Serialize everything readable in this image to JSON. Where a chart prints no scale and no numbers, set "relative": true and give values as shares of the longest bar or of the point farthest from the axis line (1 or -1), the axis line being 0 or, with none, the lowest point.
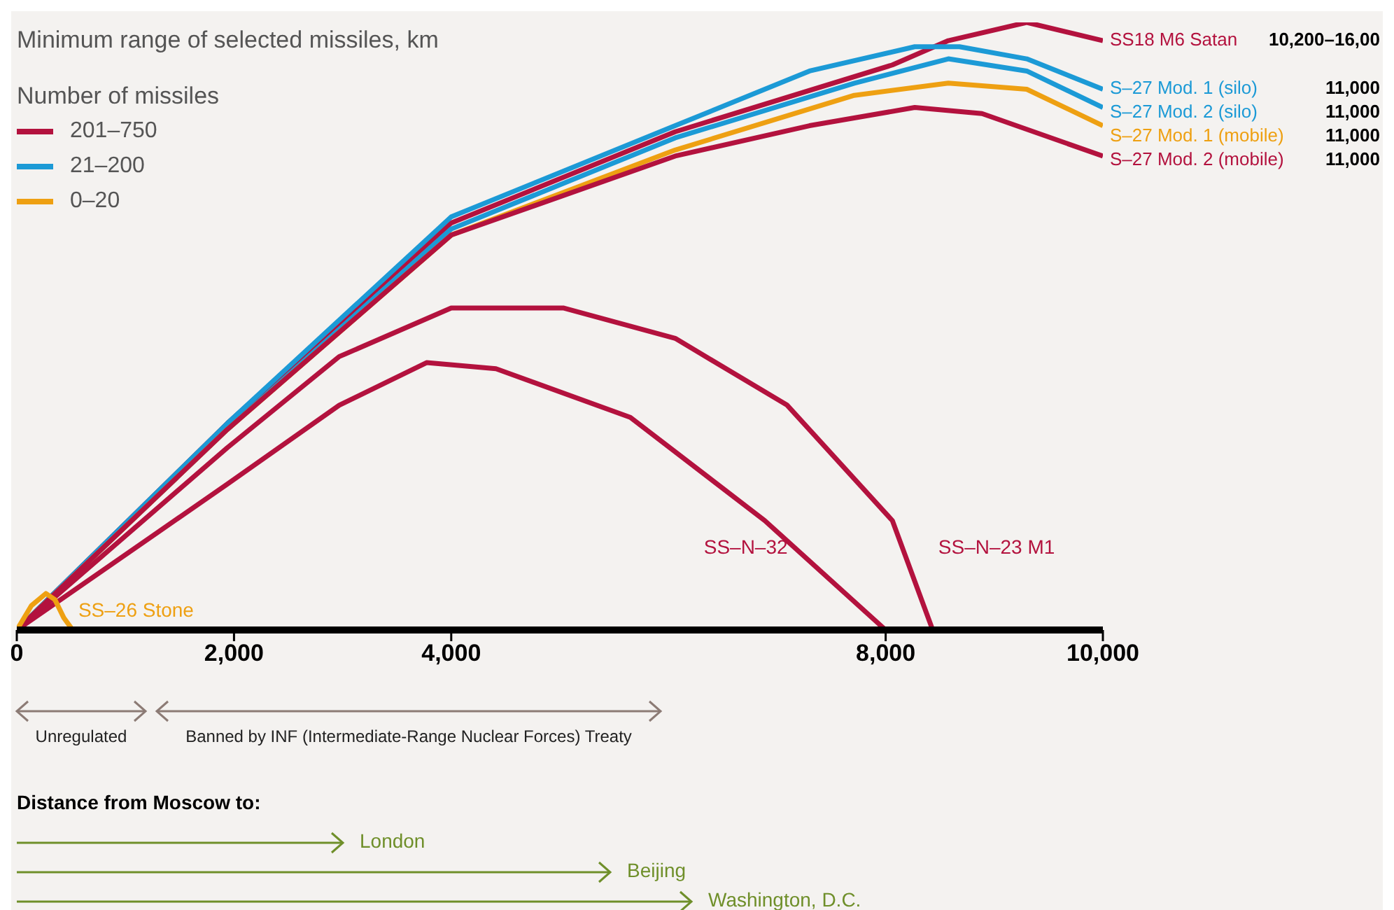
{
  "chart_data": {
    "type": "line",
    "title": "Minimum range of selected missiles, km",
    "legend_title": "Number of missiles",
    "relative": true,
    "marker": "none",
    "line_style": "solid",
    "grid": false,
    "xlim": [
      0,
      10000
    ],
    "xticks": [
      0,
      {
        "value": 2000,
        "label": "2,000"
      },
      {
        "value": 4000,
        "label": "4,000"
      },
      {
        "value": 8000,
        "label": "8,000"
      },
      {
        "value": 10000,
        "label": "10,000"
      }
    ],
    "series": [
      {
        "name": "SS18 M6 Satan",
        "color": "#b3123e",
        "x": [
          0,
          1938,
          4000,
          6062,
          8062,
          8577,
          9299,
          10000
        ],
        "values": [
          0,
          0.34,
          0.67,
          0.82,
          0.93,
          0.97,
          1,
          0.97
        ]
      },
      {
        "name": "S–27 Mod. 1 (silo)",
        "color": "#1c9ad6",
        "x": [
          0,
          1938,
          4000,
          6062,
          7299,
          8268,
          8680,
          9299,
          10000
        ],
        "values": [
          0,
          0.34,
          0.68,
          0.83,
          0.92,
          0.96,
          0.96,
          0.94,
          0.89
        ]
      },
      {
        "name": "S–27 Mod. 2 (silo)",
        "color": "#1c9ad6",
        "x": [
          0,
          1938,
          4000,
          6062,
          7711,
          8577,
          9299,
          10000
        ],
        "values": [
          0,
          0.33,
          0.66,
          0.81,
          0.9,
          0.94,
          0.92,
          0.86
        ]
      },
      {
        "name": "S–27 Mod. 1 (mobile)",
        "color": "#eea012",
        "x": [
          0,
          1938,
          4000,
          6062,
          7711,
          8577,
          9299,
          10000
        ],
        "values": [
          0,
          0.33,
          0.65,
          0.79,
          0.88,
          0.9,
          0.89,
          0.83
        ]
      },
      {
        "name": "S–27 Mod. 2 (mobile)",
        "color": "#b3123e",
        "x": [
          0,
          1938,
          4000,
          6062,
          7299,
          8268,
          8887,
          10000
        ],
        "values": [
          0,
          0.33,
          0.65,
          0.78,
          0.83,
          0.86,
          0.85,
          0.78
        ]
      },
      {
        "name": "SS–N–23 M1",
        "color": "#b3123e",
        "x": [
          0,
          1938,
          2969,
          4000,
          5031,
          6062,
          7093,
          8062,
          8433
        ],
        "values": [
          0,
          0.3,
          0.45,
          0.53,
          0.53,
          0.48,
          0.37,
          0.18,
          0
        ]
      },
      {
        "name": "SS–N–32",
        "color": "#b3123e",
        "x": [
          0,
          1938,
          2969,
          3773,
          4412,
          5649,
          6887,
          8000
        ],
        "values": [
          0,
          0.24,
          0.37,
          0.44,
          0.43,
          0.35,
          0.18,
          0
        ]
      },
      {
        "name": "SS–26 Stone",
        "color": "#eea012",
        "x": [
          0,
          134,
          268,
          351,
          433,
          515
        ],
        "values": [
          0,
          0.04,
          0.06,
          0.05,
          0.02,
          0
        ]
      }
    ],
    "annotations": [
      "201–750",
      "21–200",
      "0–20",
      "Unregulated",
      "Banned by INF (Intermediate-Range Nuclear Forces) Treaty",
      "Distance from Moscow to:",
      "London",
      "Beijing",
      "Washington, D.C.",
      "10,200–16,00",
      "11,000",
      "11,000",
      "11,000",
      "11,000"
    ]
  }
}
